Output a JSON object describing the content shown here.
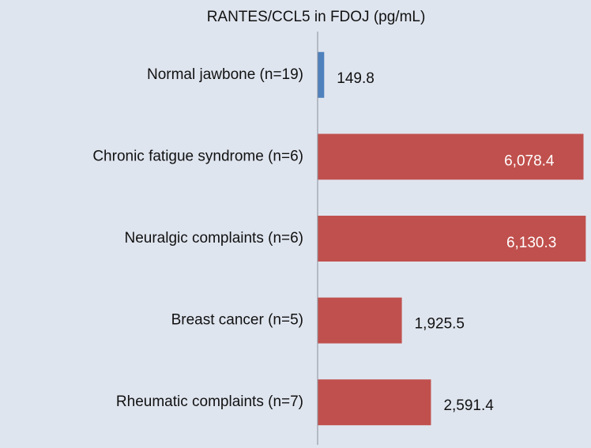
{
  "chart_data": {
    "type": "bar",
    "orientation": "horizontal",
    "title": "RANTES/CCL5 in FDOJ (pg/mL)",
    "categories": [
      "Normal jawbone (n=19)",
      "Chronic fatigue syndrome (n=6)",
      "Neuralgic complaints (n=6)",
      "Breast cancer (n=5)",
      "Rheumatic complaints (n=7)"
    ],
    "values": [
      149.8,
      6078.4,
      6130.3,
      1925.5,
      2591.4
    ],
    "value_labels": [
      "149.8",
      "6,078.4",
      "6,130.3",
      "1,925.5",
      "2,591.4"
    ],
    "colors": [
      "#4f81bd",
      "#c0504d",
      "#c0504d",
      "#c0504d",
      "#c0504d"
    ],
    "xlim": [
      0,
      6250
    ]
  }
}
